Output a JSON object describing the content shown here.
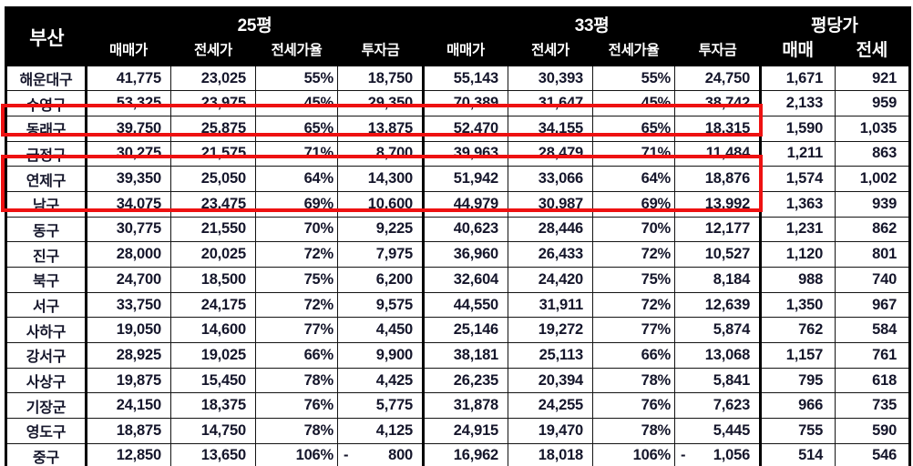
{
  "table": {
    "corner_label": "부산",
    "groups": [
      {
        "label": "25평",
        "span": 4
      },
      {
        "label": "33평",
        "span": 4
      },
      {
        "label": "평당가",
        "span": 2
      }
    ],
    "sub_headers": [
      "매매가",
      "전세가",
      "전세가율",
      "투자금",
      "매매가",
      "전세가",
      "전세가율",
      "투자금",
      "매매",
      "전세"
    ],
    "minus_sign": "-",
    "rows": [
      {
        "district": "해운대구",
        "values": [
          "41,775",
          "23,025",
          "55%",
          "18,750",
          "55,143",
          "30,393",
          "55%",
          "24,750",
          "1,671",
          "921"
        ]
      },
      {
        "district": "수영구",
        "values": [
          "53,325",
          "23,975",
          "45%",
          "29,350",
          "70,389",
          "31,647",
          "45%",
          "38,742",
          "2,133",
          "959"
        ]
      },
      {
        "district": "동래구",
        "values": [
          "39,750",
          "25,875",
          "65%",
          "13,875",
          "52,470",
          "34,155",
          "65%",
          "18,315",
          "1,590",
          "1,035"
        ]
      },
      {
        "district": "금정구",
        "values": [
          "30,275",
          "21,575",
          "71%",
          "8,700",
          "39,963",
          "28,479",
          "71%",
          "11,484",
          "1,211",
          "863"
        ]
      },
      {
        "district": "연제구",
        "values": [
          "39,350",
          "25,050",
          "64%",
          "14,300",
          "51,942",
          "33,066",
          "64%",
          "18,876",
          "1,574",
          "1,002"
        ]
      },
      {
        "district": "남구",
        "values": [
          "34,075",
          "23,475",
          "69%",
          "10,600",
          "44,979",
          "30,987",
          "69%",
          "13,992",
          "1,363",
          "939"
        ]
      },
      {
        "district": "동구",
        "values": [
          "30,775",
          "21,550",
          "70%",
          "9,225",
          "40,623",
          "28,446",
          "70%",
          "12,177",
          "1,231",
          "862"
        ]
      },
      {
        "district": "진구",
        "values": [
          "28,000",
          "20,025",
          "72%",
          "7,975",
          "36,960",
          "26,433",
          "72%",
          "10,527",
          "1,120",
          "801"
        ]
      },
      {
        "district": "북구",
        "values": [
          "24,700",
          "18,500",
          "75%",
          "6,200",
          "32,604",
          "24,420",
          "75%",
          "8,184",
          "988",
          "740"
        ]
      },
      {
        "district": "서구",
        "values": [
          "33,750",
          "24,175",
          "72%",
          "9,575",
          "44,550",
          "31,911",
          "72%",
          "12,639",
          "1,350",
          "967"
        ]
      },
      {
        "district": "사하구",
        "values": [
          "19,050",
          "14,600",
          "77%",
          "4,450",
          "25,146",
          "19,272",
          "77%",
          "5,874",
          "762",
          "584"
        ]
      },
      {
        "district": "강서구",
        "values": [
          "28,925",
          "19,025",
          "66%",
          "9,900",
          "38,181",
          "25,113",
          "66%",
          "13,068",
          "1,157",
          "761"
        ]
      },
      {
        "district": "사상구",
        "values": [
          "19,875",
          "15,450",
          "78%",
          "4,425",
          "26,235",
          "20,394",
          "78%",
          "5,841",
          "795",
          "618"
        ]
      },
      {
        "district": "기장군",
        "values": [
          "24,150",
          "18,375",
          "76%",
          "5,775",
          "31,878",
          "24,255",
          "76%",
          "7,623",
          "966",
          "735"
        ]
      },
      {
        "district": "영도구",
        "values": [
          "18,875",
          "14,750",
          "78%",
          "4,125",
          "24,915",
          "19,470",
          "78%",
          "5,445",
          "755",
          "590"
        ]
      },
      {
        "district": "중구",
        "values": [
          "12,850",
          "13,650",
          "106%",
          "800",
          "16,962",
          "18,018",
          "106%",
          "1,056",
          "514",
          "546"
        ],
        "negatives": [
          3,
          7
        ]
      }
    ]
  },
  "annotations": {
    "highlight_color": "#ee1111",
    "highlighted_rows": [
      "동래구",
      "연제구",
      "남구"
    ]
  },
  "colors": {
    "header_bg": "#000000",
    "header_text": "#ffffff",
    "body_text": "#15162b",
    "grid": "#141414",
    "background": "#ffffff"
  },
  "chart_data": {
    "type": "table",
    "title": "부산",
    "column_groups": [
      "25평",
      "33평",
      "평당가"
    ],
    "columns": [
      "부산",
      "25평 매매가",
      "25평 전세가",
      "25평 전세가율",
      "25평 투자금",
      "33평 매매가",
      "33평 전세가",
      "33평 전세가율",
      "33평 투자금",
      "평당가 매매",
      "평당가 전세"
    ],
    "rows": [
      [
        "해운대구",
        41775,
        23025,
        "55%",
        18750,
        55143,
        30393,
        "55%",
        24750,
        1671,
        921
      ],
      [
        "수영구",
        53325,
        23975,
        "45%",
        29350,
        70389,
        31647,
        "45%",
        38742,
        2133,
        959
      ],
      [
        "동래구",
        39750,
        25875,
        "65%",
        13875,
        52470,
        34155,
        "65%",
        18315,
        1590,
        1035
      ],
      [
        "금정구",
        30275,
        21575,
        "71%",
        8700,
        39963,
        28479,
        "71%",
        11484,
        1211,
        863
      ],
      [
        "연제구",
        39350,
        25050,
        "64%",
        14300,
        51942,
        33066,
        "64%",
        18876,
        1574,
        1002
      ],
      [
        "남구",
        34075,
        23475,
        "69%",
        10600,
        44979,
        30987,
        "69%",
        13992,
        1363,
        939
      ],
      [
        "동구",
        30775,
        21550,
        "70%",
        9225,
        40623,
        28446,
        "70%",
        12177,
        1231,
        862
      ],
      [
        "진구",
        28000,
        20025,
        "72%",
        7975,
        36960,
        26433,
        "72%",
        10527,
        1120,
        801
      ],
      [
        "북구",
        24700,
        18500,
        "75%",
        6200,
        32604,
        24420,
        "75%",
        8184,
        988,
        740
      ],
      [
        "서구",
        33750,
        24175,
        "72%",
        9575,
        44550,
        31911,
        "72%",
        12639,
        1350,
        967
      ],
      [
        "사하구",
        19050,
        14600,
        "77%",
        4450,
        25146,
        19272,
        "77%",
        5874,
        762,
        584
      ],
      [
        "강서구",
        28925,
        19025,
        "66%",
        9900,
        38181,
        25113,
        "66%",
        13068,
        1157,
        761
      ],
      [
        "사상구",
        19875,
        15450,
        "78%",
        4425,
        26235,
        20394,
        "78%",
        5841,
        795,
        618
      ],
      [
        "기장군",
        24150,
        18375,
        "76%",
        5775,
        31878,
        24255,
        "76%",
        7623,
        966,
        735
      ],
      [
        "영도구",
        18875,
        14750,
        "78%",
        4125,
        24915,
        19470,
        "78%",
        5445,
        755,
        590
      ],
      [
        "중구",
        12850,
        13650,
        "106%",
        -800,
        16962,
        18018,
        "106%",
        -1056,
        514,
        546
      ]
    ],
    "highlighted_rows": [
      "동래구",
      "연제구",
      "남구"
    ],
    "legend_position": "none",
    "grid": true
  }
}
